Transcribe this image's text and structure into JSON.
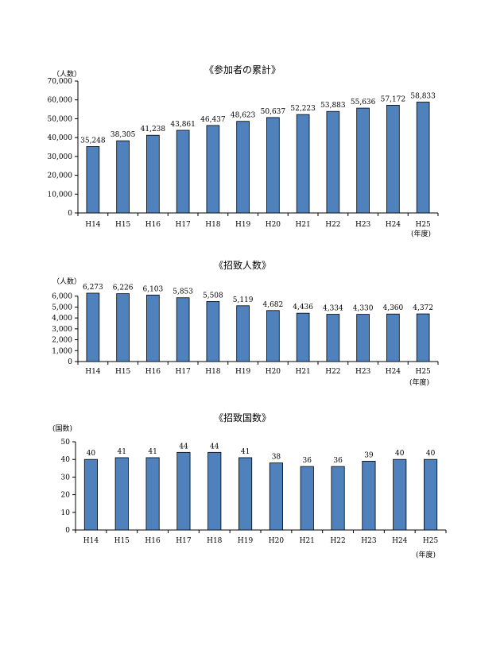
{
  "chart_data": [
    {
      "type": "bar",
      "title": "《参加者の累計》",
      "ylabel": "（人数）",
      "xunit": "(年度)",
      "categories": [
        "H14",
        "H15",
        "H16",
        "H17",
        "H18",
        "H19",
        "H20",
        "H21",
        "H22",
        "H23",
        "H24",
        "H25"
      ],
      "values": [
        35248,
        38305,
        41238,
        43861,
        46437,
        48623,
        50637,
        52223,
        53883,
        55636,
        57172,
        58833
      ],
      "data_labels": [
        "35,248",
        "38,305",
        "41,238",
        "43,861",
        "46,437",
        "48,623",
        "50,637",
        "52,223",
        "53,883",
        "55,636",
        "57,172",
        "58,833"
      ],
      "ylim": [
        0,
        70000
      ],
      "yticks": [
        0,
        10000,
        20000,
        30000,
        40000,
        50000,
        60000,
        70000
      ],
      "ytick_labels": [
        "0",
        "10,000",
        "20,000",
        "30,000",
        "40,000",
        "50,000",
        "60,000",
        "70,000"
      ],
      "grid": false,
      "bar_color": "#4f81bd"
    },
    {
      "type": "bar",
      "title": "《招致人数》",
      "ylabel": "（人数）",
      "xunit": "(年度)",
      "categories": [
        "H14",
        "H15",
        "H16",
        "H17",
        "H18",
        "H19",
        "H20",
        "H21",
        "H22",
        "H23",
        "H24",
        "H25"
      ],
      "values": [
        6273,
        6226,
        6103,
        5853,
        5508,
        5119,
        4682,
        4436,
        4334,
        4330,
        4360,
        4372
      ],
      "data_labels": [
        "6,273",
        "6,226",
        "6,103",
        "5,853",
        "5,508",
        "5,119",
        "4,682",
        "4,436",
        "4,334",
        "4,330",
        "4,360",
        "4,372"
      ],
      "ylim": [
        0,
        7000
      ],
      "yticks": [
        0,
        1000,
        2000,
        3000,
        4000,
        5000,
        6000
      ],
      "ytick_labels": [
        "0",
        "1,000",
        "2,000",
        "3,000",
        "4,000",
        "5,000",
        "6,000"
      ],
      "grid": false,
      "bar_color": "#4f81bd"
    },
    {
      "type": "bar",
      "title": "《招致国数》",
      "ylabel": "(国数)",
      "xunit": "(年度)",
      "categories": [
        "H14",
        "H15",
        "H16",
        "H17",
        "H18",
        "H19",
        "H20",
        "H21",
        "H22",
        "H23",
        "H24",
        "H25"
      ],
      "values": [
        40,
        41,
        41,
        44,
        44,
        41,
        38,
        36,
        36,
        39,
        40,
        40
      ],
      "data_labels": [
        "40",
        "41",
        "41",
        "44",
        "44",
        "41",
        "38",
        "36",
        "36",
        "39",
        "40",
        "40"
      ],
      "ylim": [
        0,
        50
      ],
      "yticks": [
        0,
        10,
        20,
        30,
        40,
        50
      ],
      "ytick_labels": [
        "0",
        "10",
        "20",
        "30",
        "40",
        "50"
      ],
      "grid": false,
      "bar_color": "#4f81bd"
    }
  ]
}
